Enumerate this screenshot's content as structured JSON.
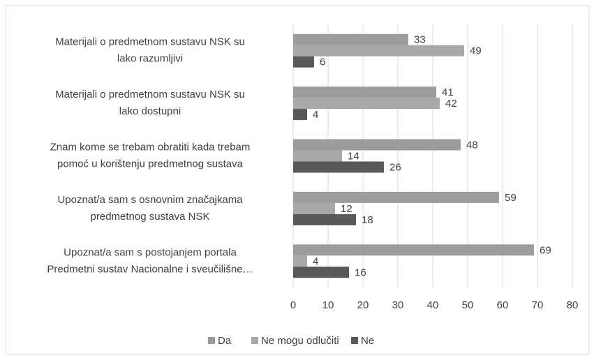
{
  "chart_data": {
    "type": "bar",
    "orientation": "horizontal",
    "categories": [
      [
        "Materijali o predmetnom sustavu NSK su",
        "lako razumljivi"
      ],
      [
        "Materijali o predmetnom sustavu NSK su",
        "lako dostupni"
      ],
      [
        "Znam kome se trebam obratiti kada trebam",
        "pomoć u korištenju predmetnog sustava"
      ],
      [
        "Upoznat/a sam s osnovnim značajkama",
        "predmetnog sustava NSK"
      ],
      [
        "Upoznat/a sam s postojanjem portala",
        "Predmetni sustav Nacionalne i sveučilišne…"
      ]
    ],
    "series": [
      {
        "name": "Da",
        "color": "#9c9c9c",
        "values": [
          33,
          41,
          48,
          59,
          69
        ]
      },
      {
        "name": "Ne mogu odlučiti",
        "color": "#a8a8a8",
        "values": [
          49,
          42,
          14,
          12,
          4
        ]
      },
      {
        "name": "Ne",
        "color": "#595959",
        "values": [
          6,
          4,
          26,
          18,
          16
        ]
      }
    ],
    "xlim": [
      0,
      80
    ],
    "xticks": [
      0,
      10,
      20,
      30,
      40,
      50,
      60,
      70,
      80
    ],
    "grid": true,
    "legend": "bottom"
  }
}
